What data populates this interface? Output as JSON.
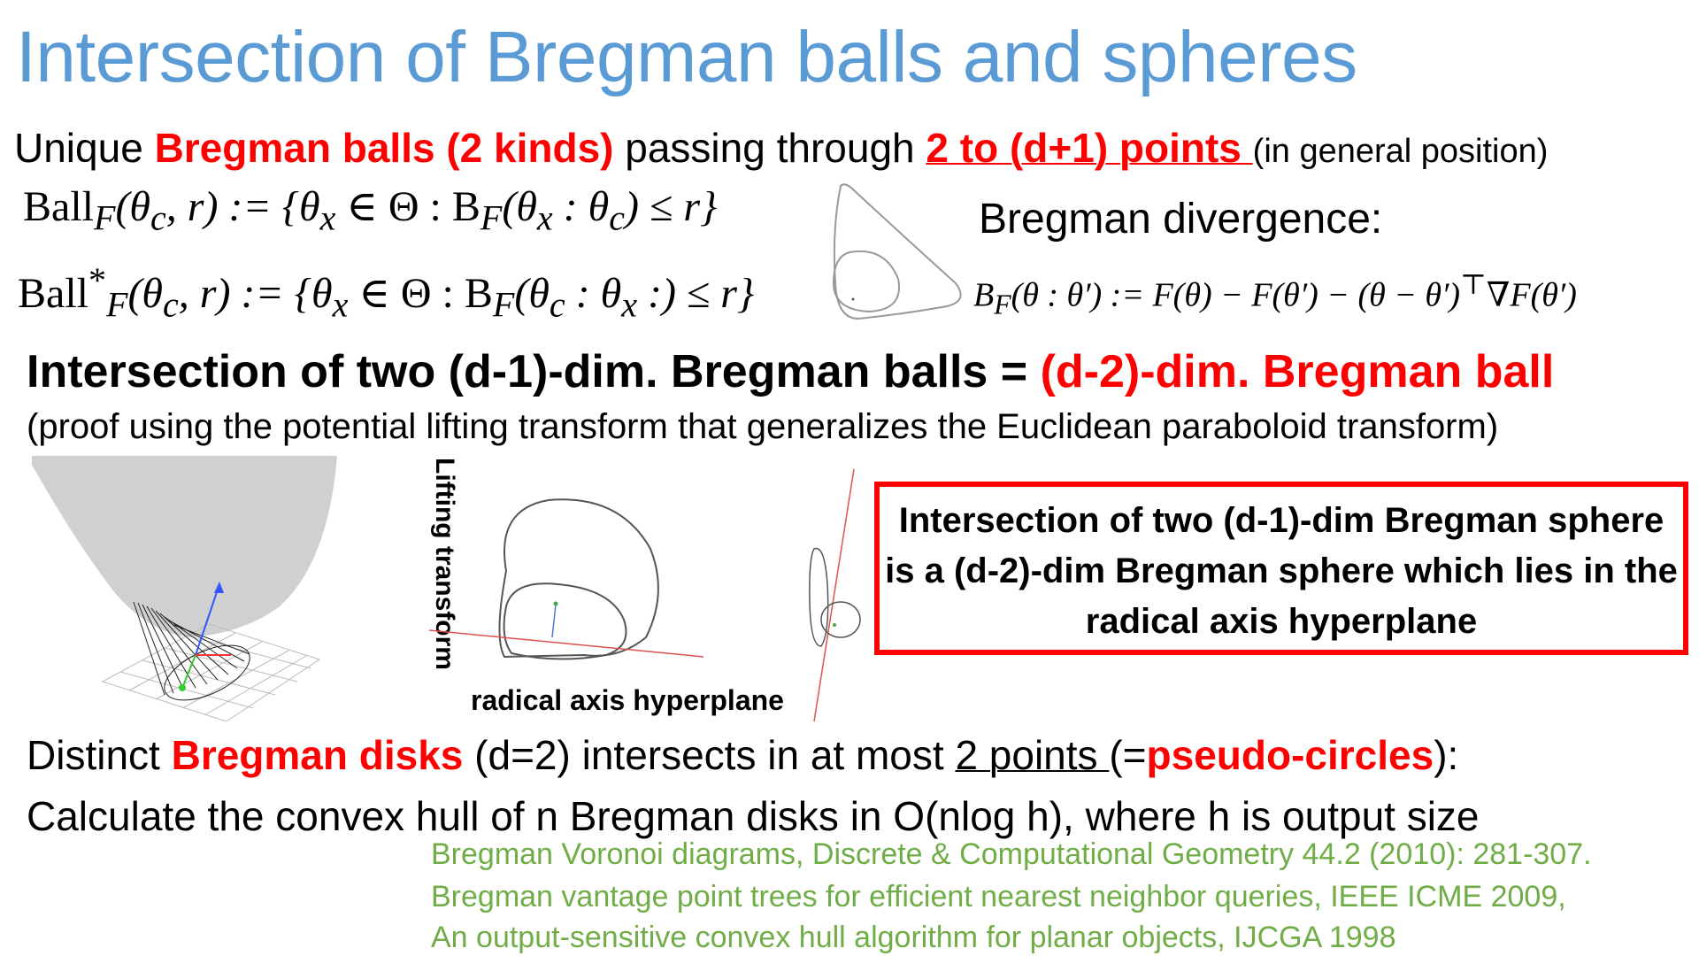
{
  "slide": {
    "title": "Intersection of Bregman balls and spheres",
    "line1": {
      "prefix": "Unique ",
      "balls_red": "Bregman balls (2 kinds)",
      "middle": " passing through ",
      "points_red": "2 to (d+1) points ",
      "suffix": "(in general position)"
    },
    "ball_def": {
      "lhs": "Ball",
      "sub": "F",
      "args": "(θ",
      "c": "c",
      "rest": ", r) := {θ",
      "x": "x",
      "set": " ∈ Θ  :  B",
      "sub2": "F",
      "div": "(θ",
      "x2": "x",
      "colon": " : θ",
      "c2": "c",
      "end": ") ≤ r}"
    },
    "ball_dual_def": {
      "lhs": "Ball",
      "sup": "*",
      "sub": "F",
      "args": "(θ",
      "c": "c",
      "rest": ", r) := {θ",
      "x": "x",
      "set": " ∈ Θ  :  B",
      "sub2": "F",
      "div": "(θ",
      "c2": "c",
      "colon": " : θ",
      "x2": "x",
      "end": " :) ≤ r}"
    },
    "divergence_label": "Bregman divergence:",
    "divergence_formula": {
      "b": "B",
      "sub": "F",
      "body1": "(θ : θ′) := F(θ) − F(θ′) − (θ − θ′)",
      "sup": "⊤",
      "body2": "∇F(θ′)"
    },
    "intersect_line": {
      "black": "Intersection of two (d-1)-dim. Bregman balls = ",
      "red": "(d-2)-dim. Bregman ball"
    },
    "proof_line": "(proof using the potential lifting transform that generalizes the Euclidean paraboloid transform)",
    "lifting_label": "Lifting transform",
    "radical_label": "radical axis hyperplane",
    "box_text": "Intersection of two (d-1)-dim Bregman sphere is a (d-2)-dim Bregman sphere which lies in the radical axis hyperplane",
    "disks_line": {
      "prefix": "Distinct ",
      "red": "Bregman disks",
      "middle": " (d=2) intersects in at most ",
      "underlined": "2 points ",
      "open": "(=",
      "red2": "pseudo-circles",
      "close": "):"
    },
    "convex_line": "Calculate the convex hull of n Bregman disks in O(nlog h), where h is output size",
    "references": [
      "Bregman Voronoi diagrams, Discrete & Computational Geometry 44.2 (2010): 281-307.",
      "Bregman vantage point trees for efficient nearest neighbor queries, IEEE ICME 2009,",
      "An output-sensitive convex hull algorithm for planar objects, IJCGA 1998"
    ],
    "colors": {
      "title": "#5b9bd5",
      "accent": "#ff0000",
      "reference": "#70ad47"
    }
  }
}
